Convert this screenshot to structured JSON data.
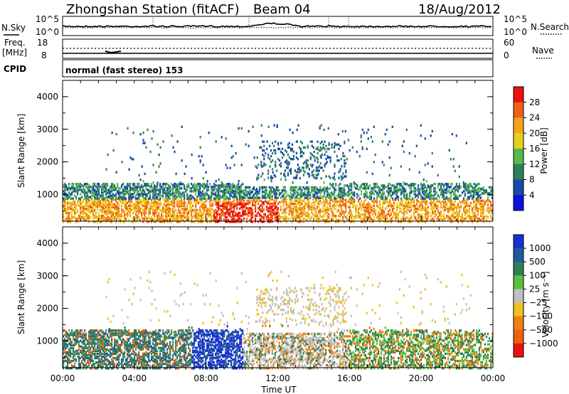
{
  "header": {
    "station": "Zhongshan Station (fitACF)",
    "beam": "Beam 04",
    "date": "18/Aug/2012"
  },
  "noise_panel": {
    "left_label": "N.Sky",
    "right_label": "N.Search",
    "ticks_left": [
      "10^5",
      "10^0"
    ],
    "ticks_right": [
      "10^5",
      "10^0"
    ]
  },
  "freq_panel": {
    "left_label_1": "Freq.",
    "left_label_2": "[MHz]",
    "right_label": "Nave",
    "ticks_left": [
      "18",
      "8"
    ],
    "ticks_right": [
      "60",
      "0"
    ]
  },
  "cpid": {
    "label": "CPID",
    "text": "normal (fast stereo) 153"
  },
  "chart_data": [
    {
      "type": "heatmap",
      "name": "power",
      "ylabel": "Slant Range [km]",
      "y_ticks": [
        "1000",
        "2000",
        "3000",
        "4000"
      ],
      "ylim": [
        180,
        4500
      ],
      "colorbar_label": "Power [dB]",
      "colorbar_ticks": [
        "4",
        "8",
        "12",
        "16",
        "20",
        "24",
        "28"
      ],
      "colorbar_colors": [
        "#1010e0",
        "#1a4aa8",
        "#2f7f5a",
        "#58b84a",
        "#e4d21a",
        "#f5a21c",
        "#f06010",
        "#ee1010"
      ]
    },
    {
      "type": "heatmap",
      "name": "velocity",
      "ylabel": "Slant Range [km]",
      "y_ticks": [
        "1000",
        "2000",
        "3000",
        "4000"
      ],
      "ylim": [
        180,
        4500
      ],
      "colorbar_label": "Velocity [m s⁻¹]",
      "colorbar_ticks": [
        "1000",
        "500",
        "100",
        "25",
        "−25",
        "−100",
        "−500",
        "−1000"
      ],
      "colorbar_colors": [
        "#1a2fd0",
        "#1e5aa0",
        "#2f7f5a",
        "#58c040",
        "#c0c0c0",
        "#f0c020",
        "#f08010",
        "#f06010",
        "#ee1010"
      ]
    }
  ],
  "time_axis": {
    "ticks": [
      "00:00",
      "04:00",
      "08:00",
      "12:00",
      "16:00",
      "20:00",
      "00:00"
    ],
    "label": "Time UT"
  }
}
